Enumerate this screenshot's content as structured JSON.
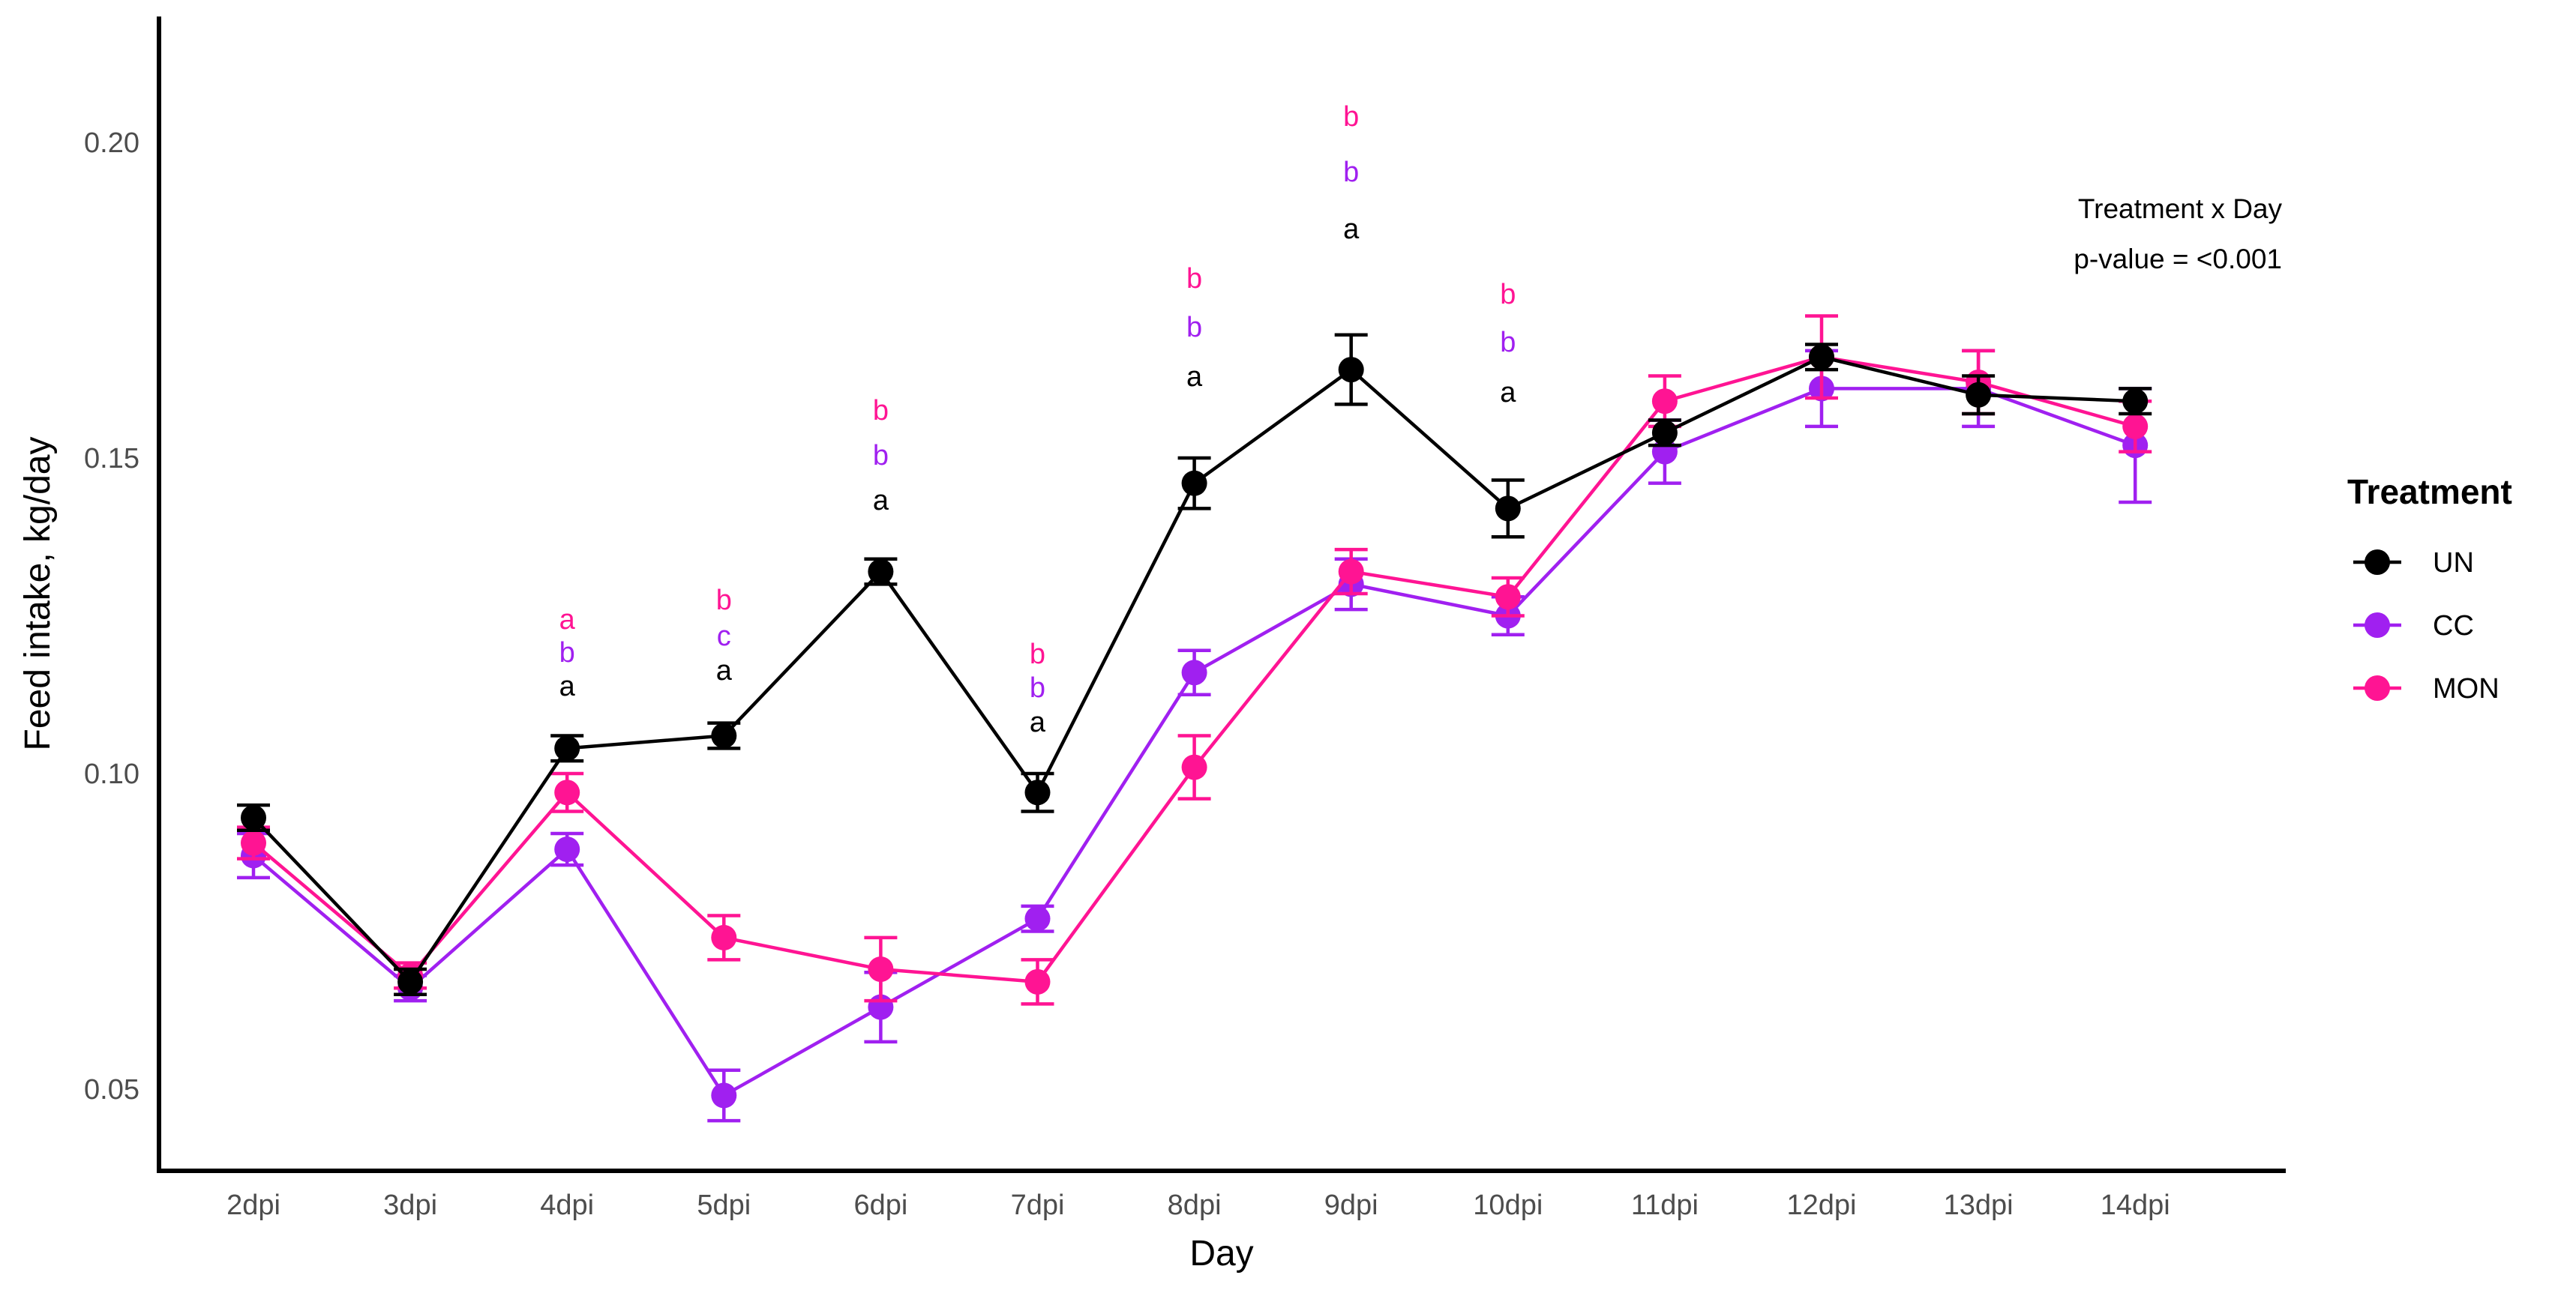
{
  "chart_data": {
    "type": "line",
    "xlabel": "Day",
    "ylabel": "Feed intake, kg/day",
    "ylim": [
      0.035,
      0.22
    ],
    "yticks": [
      0.05,
      0.1,
      0.15,
      0.2
    ],
    "ytick_labels": [
      "0.05",
      "0.10",
      "0.15",
      "0.20"
    ],
    "categories": [
      "2dpi",
      "3dpi",
      "4dpi",
      "5dpi",
      "6dpi",
      "7dpi",
      "8dpi",
      "9dpi",
      "10dpi",
      "11dpi",
      "12dpi",
      "13dpi",
      "14dpi"
    ],
    "legend": {
      "title": "Treatment",
      "position": "right"
    },
    "series": [
      {
        "name": "UN",
        "color": "#000000",
        "values": [
          0.093,
          0.067,
          0.104,
          0.106,
          0.132,
          0.097,
          0.146,
          0.164,
          0.142,
          0.154,
          0.166,
          0.16,
          0.159
        ],
        "errors": [
          0.002,
          0.002,
          0.002,
          0.002,
          0.002,
          0.003,
          0.004,
          0.0055,
          0.0045,
          0.002,
          0.002,
          0.003,
          0.002
        ]
      },
      {
        "name": "CC",
        "color": "#a020f0",
        "values": [
          0.087,
          0.066,
          0.088,
          0.049,
          0.063,
          0.077,
          0.116,
          0.13,
          0.125,
          0.151,
          0.161,
          0.161,
          0.152
        ],
        "errors": [
          0.0035,
          0.002,
          0.0025,
          0.004,
          0.0055,
          0.002,
          0.0035,
          0.004,
          0.003,
          0.005,
          0.006,
          0.006,
          0.009
        ]
      },
      {
        "name": "MON",
        "color": "#ff1493",
        "values": [
          0.089,
          0.068,
          0.097,
          0.074,
          0.069,
          0.067,
          0.101,
          0.132,
          0.128,
          0.159,
          0.166,
          0.162,
          0.155
        ],
        "errors": [
          0.0025,
          0.002,
          0.003,
          0.0035,
          0.005,
          0.0035,
          0.005,
          0.0035,
          0.003,
          0.004,
          0.0065,
          0.005,
          0.004
        ]
      }
    ],
    "significance_letters": [
      {
        "day": "4dpi",
        "UN": "a",
        "CC": "b",
        "MON": "a"
      },
      {
        "day": "5dpi",
        "UN": "a",
        "CC": "c",
        "MON": "b"
      },
      {
        "day": "6dpi",
        "UN": "a",
        "CC": "b",
        "MON": "b"
      },
      {
        "day": "7dpi",
        "UN": "a",
        "CC": "b",
        "MON": "b"
      },
      {
        "day": "8dpi",
        "UN": "a",
        "CC": "b",
        "MON": "b"
      },
      {
        "day": "9dpi",
        "UN": "a",
        "CC": "b",
        "MON": "b"
      },
      {
        "day": "10dpi",
        "UN": "a",
        "CC": "b",
        "MON": "b"
      }
    ],
    "annotation": {
      "line1": "Treatment x Day",
      "line2": "p-value = <0.001"
    }
  }
}
